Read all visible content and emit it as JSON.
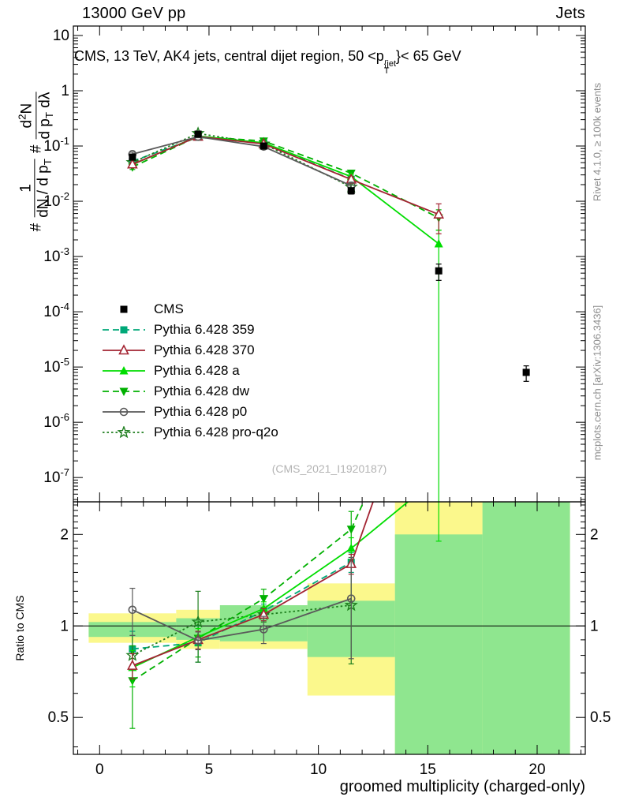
{
  "header": {
    "beam": "13000 GeV pp",
    "process": "Jets"
  },
  "plot_title": {
    "prefix": "CMS, 13 TeV, AK4 jets, central dijet region, 50 <p",
    "sup": "{jet",
    "sub": "T",
    "suffix": "}< 65 GeV"
  },
  "ylabel": {
    "hash1": "#",
    "f1_num": "1",
    "f1_den_a": "dN / d p",
    "f1_den_sub": "T",
    "hash2": "#",
    "f2_num_a": "d",
    "f2_num_sup": "2",
    "f2_num_b": "N",
    "f2_den_a": "d p",
    "f2_den_sub": "T",
    "f2_den_b": " dλ"
  },
  "ratio_ylabel": "Ratio to CMS",
  "xlabel": "groomed multiplicity (charged-only)",
  "watermark": "(CMS_2021_I1920187)",
  "side_notes": {
    "top": "Rivet 4.1.0, ≥ 100k events",
    "bottom": "mcplots.cern.ch [arXiv:1306.3436]"
  },
  "chart_data": {
    "type": "line",
    "x_range": [
      -1.2,
      22.2
    ],
    "x_ticks": [
      0,
      5,
      10,
      15,
      20
    ],
    "bin_edges": [
      -0.5,
      3.5,
      5.5,
      9.5,
      13.5,
      17.5,
      21.5
    ],
    "main_panel": {
      "ylog_exp_range": [
        -7.44,
        1.171
      ],
      "ytick_exps": [
        1,
        0,
        -1,
        -2,
        -3,
        -4,
        -5,
        -6,
        -7
      ]
    },
    "ratio_panel": {
      "y_range": [
        0.378,
        2.56
      ],
      "ticks": [
        2,
        1,
        0.5
      ]
    },
    "cms": {
      "label": "CMS",
      "color": "#000000",
      "marker": "square-filled",
      "x": [
        1.5,
        4.5,
        7.5,
        11.5,
        15.5,
        19.5
      ],
      "y": [
        0.063,
        0.164,
        0.1,
        0.0155,
        0.00055,
        8e-06
      ],
      "yerr": [
        0.005,
        0.006,
        0.004,
        0.002,
        0.00018,
        2.5e-06
      ]
    },
    "series": [
      {
        "label": "Pythia 6.428 359",
        "color": "#00a878",
        "line": "dashed",
        "marker": "square-filled",
        "x": [
          1.5,
          4.5,
          7.5,
          11.5
        ],
        "y": [
          0.0529,
          0.144,
          0.112,
          0.0251
        ],
        "yerr": [
          0.004,
          0.006,
          0.004,
          0.003
        ],
        "ratio": [
          0.84,
          0.88,
          1.12,
          1.62
        ],
        "ratio_err": [
          0.12,
          0.12,
          0.06,
          0.12
        ]
      },
      {
        "label": "Pythia 6.428 370",
        "color": "#a32432",
        "line": "solid",
        "marker": "triangle-open",
        "x": [
          1.5,
          4.5,
          7.5,
          11.5,
          15.5
        ],
        "y": [
          0.0466,
          0.148,
          0.109,
          0.0248,
          0.00578
        ],
        "yerr": [
          0.003,
          0.005,
          0.004,
          0.003,
          0.0032
        ],
        "ratio": [
          0.74,
          0.9,
          1.09,
          1.6,
          10.5
        ],
        "ratio_err": [
          0.07,
          0.06,
          0.05,
          0.12,
          5.0
        ]
      },
      {
        "label": "Pythia 6.428 a",
        "color": "#00dd00",
        "line": "solid",
        "marker": "triangle-filled",
        "x": [
          1.5,
          4.5,
          7.5,
          11.5,
          15.5
        ],
        "y": [
          0.046,
          0.151,
          0.114,
          0.0279,
          0.0017
        ],
        "yerr_lo": [
          0.004,
          0.005,
          0.004,
          0.003,
          0.00169999
        ],
        "yerr_hi": [
          0.004,
          0.005,
          0.004,
          0.003,
          0.0013
        ],
        "ratio": [
          0.73,
          0.92,
          1.14,
          1.8,
          3.1
        ],
        "ratio_err": [
          0.1,
          0.06,
          0.06,
          0.15,
          1.2
        ]
      },
      {
        "label": "Pythia 6.428 dw",
        "color": "#00b000",
        "line": "dashed",
        "marker": "triangle-down-filled",
        "x": [
          1.5,
          4.5,
          7.5,
          11.5,
          15.5
        ],
        "y": [
          0.0416,
          0.149,
          0.123,
          0.0322,
          0.005
        ],
        "yerr": [
          0.004,
          0.006,
          0.005,
          0.004,
          0.002
        ],
        "ratio": [
          0.66,
          0.91,
          1.23,
          2.08,
          9.0
        ],
        "ratio_err": [
          0.2,
          0.12,
          0.09,
          0.3,
          4.0
        ]
      },
      {
        "label": "Pythia 6.428 p0",
        "color": "#5a5a5a",
        "line": "solid",
        "marker": "circle-open",
        "x": [
          1.5,
          4.5,
          7.5,
          11.5
        ],
        "y": [
          0.0712,
          0.147,
          0.0975,
          0.0191
        ],
        "yerr": [
          0.006,
          0.006,
          0.004,
          0.003
        ],
        "ratio": [
          1.13,
          0.895,
          0.975,
          1.23
        ],
        "ratio_err": [
          0.2,
          0.06,
          0.1,
          0.45
        ]
      },
      {
        "label": "Pythia 6.428 pro-q2o",
        "color": "#1e7e1e",
        "line": "dotted",
        "marker": "star-open",
        "x": [
          1.5,
          4.5,
          7.5,
          11.5
        ],
        "y": [
          0.0504,
          0.169,
          0.109,
          0.0181
        ],
        "yerr": [
          0.005,
          0.007,
          0.004,
          0.003
        ],
        "ratio": [
          0.8,
          1.03,
          1.09,
          1.17
        ],
        "ratio_err": [
          0.13,
          0.27,
          0.06,
          0.42
        ]
      }
    ],
    "draw_order": [
      0,
      3,
      5,
      2,
      1,
      4
    ],
    "bands": {
      "yellow": "#fbf88c",
      "green": "#8fe68f",
      "bins": [
        {
          "x": [
            -0.5,
            3.5
          ],
          "yellow": [
            0.88,
            1.1
          ],
          "green": [
            0.92,
            1.03
          ]
        },
        {
          "x": [
            3.5,
            5.5
          ],
          "yellow": [
            0.84,
            1.13
          ],
          "green": [
            0.9,
            1.06
          ]
        },
        {
          "x": [
            5.5,
            9.5
          ],
          "yellow": [
            0.84,
            1.13
          ],
          "green": [
            0.89,
            1.17
          ]
        },
        {
          "x": [
            9.5,
            13.5
          ],
          "yellow": [
            0.59,
            1.38
          ],
          "green": [
            0.79,
            1.21
          ]
        },
        {
          "x": [
            13.5,
            17.5
          ],
          "yellow": [
            0.37,
            2.6
          ],
          "green": [
            0.37,
            2.0
          ]
        },
        {
          "x": [
            17.5,
            21.5
          ],
          "yellow": [
            0.37,
            2.6
          ],
          "green": [
            0.37,
            2.6
          ]
        }
      ]
    }
  }
}
